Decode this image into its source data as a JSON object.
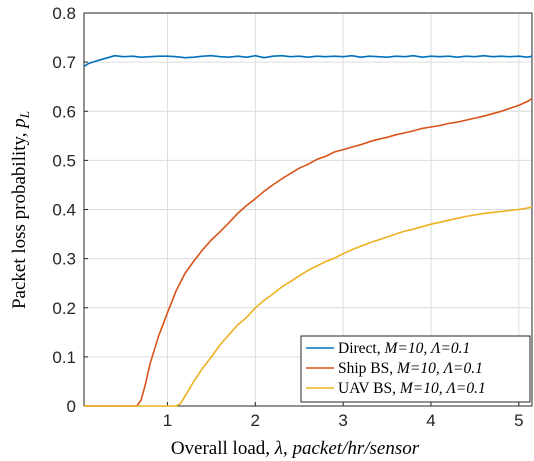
{
  "chart_data": {
    "type": "line",
    "xlabel_plain": "Overall load, ",
    "xlabel_lambda": "λ",
    "xlabel_sep": ", ",
    "xlabel_unit": "packet/hr/sensor",
    "ylabel_main": "Packet loss probability, ",
    "ylabel_p": "p",
    "ylabel_sub": "L",
    "xlim": [
      0.05,
      5.15
    ],
    "ylim": [
      0,
      0.8
    ],
    "xticks": [
      1,
      2,
      3,
      4,
      5
    ],
    "yticks": [
      0,
      0.1,
      0.2,
      0.3,
      0.4,
      0.5,
      0.6,
      0.7,
      0.8
    ],
    "grid": true,
    "legend_position": "bottom-right",
    "series": [
      {
        "name_prefix": "Direct, ",
        "name_params": "M=10, Λ=0.1",
        "color": "#0072BD",
        "x": [
          0.05,
          0.1,
          0.15,
          0.2,
          0.3,
          0.4,
          0.5,
          0.6,
          0.7,
          0.8,
          0.9,
          1.0,
          1.1,
          1.2,
          1.3,
          1.4,
          1.5,
          1.6,
          1.7,
          1.8,
          1.9,
          2.0,
          2.1,
          2.2,
          2.3,
          2.4,
          2.5,
          2.6,
          2.7,
          2.8,
          2.9,
          3.0,
          3.1,
          3.2,
          3.3,
          3.4,
          3.5,
          3.6,
          3.7,
          3.8,
          3.9,
          4.0,
          4.1,
          4.2,
          4.3,
          4.4,
          4.5,
          4.6,
          4.7,
          4.8,
          4.9,
          5.0,
          5.1,
          5.15
        ],
        "y": [
          0.691,
          0.697,
          0.7,
          0.703,
          0.708,
          0.713,
          0.711,
          0.712,
          0.71,
          0.711,
          0.712,
          0.712,
          0.711,
          0.709,
          0.71,
          0.712,
          0.713,
          0.711,
          0.71,
          0.712,
          0.71,
          0.713,
          0.709,
          0.712,
          0.713,
          0.711,
          0.712,
          0.71,
          0.712,
          0.711,
          0.712,
          0.711,
          0.713,
          0.71,
          0.712,
          0.711,
          0.71,
          0.712,
          0.711,
          0.713,
          0.71,
          0.712,
          0.711,
          0.712,
          0.71,
          0.712,
          0.711,
          0.713,
          0.711,
          0.712,
          0.711,
          0.712,
          0.71,
          0.712
        ]
      },
      {
        "name_prefix": "Ship BS, ",
        "name_params": "M=10, Λ=0.1",
        "color": "#D95319",
        "x": [
          0.05,
          0.6,
          0.65,
          0.7,
          0.75,
          0.8,
          0.9,
          1.0,
          1.1,
          1.2,
          1.3,
          1.4,
          1.5,
          1.6,
          1.7,
          1.8,
          1.9,
          2.0,
          2.1,
          2.2,
          2.3,
          2.4,
          2.5,
          2.6,
          2.7,
          2.8,
          2.9,
          3.0,
          3.1,
          3.2,
          3.3,
          3.4,
          3.5,
          3.6,
          3.7,
          3.8,
          3.9,
          4.0,
          4.1,
          4.2,
          4.3,
          4.4,
          4.5,
          4.6,
          4.7,
          4.8,
          4.9,
          5.0,
          5.1,
          5.15
        ],
        "y": [
          0,
          0,
          0,
          0.012,
          0.045,
          0.085,
          0.143,
          0.19,
          0.235,
          0.27,
          0.295,
          0.318,
          0.338,
          0.355,
          0.373,
          0.392,
          0.408,
          0.422,
          0.437,
          0.45,
          0.462,
          0.473,
          0.484,
          0.492,
          0.502,
          0.508,
          0.517,
          0.522,
          0.527,
          0.532,
          0.538,
          0.543,
          0.547,
          0.552,
          0.556,
          0.56,
          0.565,
          0.568,
          0.571,
          0.575,
          0.578,
          0.582,
          0.586,
          0.59,
          0.595,
          0.6,
          0.606,
          0.612,
          0.62,
          0.626
        ]
      },
      {
        "name_prefix": "UAV BS, ",
        "name_params": "M=10, Λ=0.1",
        "color": "#EDB120",
        "x": [
          0.05,
          1.1,
          1.15,
          1.2,
          1.25,
          1.3,
          1.4,
          1.5,
          1.6,
          1.7,
          1.8,
          1.9,
          2.0,
          2.1,
          2.2,
          2.3,
          2.4,
          2.5,
          2.6,
          2.7,
          2.8,
          2.9,
          3.0,
          3.1,
          3.2,
          3.3,
          3.4,
          3.5,
          3.6,
          3.7,
          3.8,
          3.9,
          4.0,
          4.1,
          4.2,
          4.3,
          4.4,
          4.5,
          4.6,
          4.7,
          4.8,
          4.9,
          5.0,
          5.1,
          5.15
        ],
        "y": [
          0,
          0,
          0.005,
          0.02,
          0.035,
          0.05,
          0.077,
          0.1,
          0.125,
          0.145,
          0.165,
          0.18,
          0.2,
          0.215,
          0.228,
          0.242,
          0.253,
          0.265,
          0.276,
          0.285,
          0.294,
          0.301,
          0.31,
          0.318,
          0.325,
          0.332,
          0.338,
          0.344,
          0.35,
          0.356,
          0.36,
          0.365,
          0.37,
          0.374,
          0.378,
          0.382,
          0.386,
          0.389,
          0.392,
          0.394,
          0.396,
          0.398,
          0.4,
          0.403,
          0.405
        ]
      }
    ]
  }
}
